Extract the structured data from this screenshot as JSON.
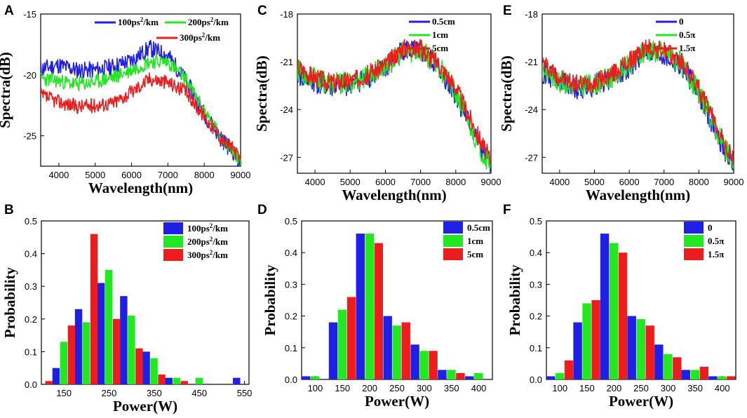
{
  "figure": {
    "panels": [
      "A",
      "B",
      "C",
      "D",
      "E",
      "F"
    ]
  },
  "colors": {
    "blue": "#1f1fe6",
    "green": "#22e822",
    "red": "#ee1d1d"
  },
  "chart_data": [
    {
      "id": "A",
      "type": "line",
      "xlabel": "Wavelength(nm)",
      "ylabel": "Spectra(dB)",
      "xlim": [
        3500,
        9000
      ],
      "ylim": [
        -27.5,
        -15
      ],
      "xticks": [
        4000,
        5000,
        6000,
        7000,
        8000,
        9000
      ],
      "yticks": [
        -25,
        -20,
        -15
      ],
      "legend": "top-right",
      "series": [
        {
          "name": "100ps",
          "sup": "2",
          "unit": "/km",
          "color": "#1f1fe6",
          "seed": 11,
          "noise": 0.7,
          "x": [
            3500,
            4000,
            4500,
            5000,
            5500,
            6000,
            6500,
            7000,
            7500,
            8000,
            8500,
            8800,
            9000
          ],
          "y": [
            -19.5,
            -19.2,
            -19.6,
            -19.6,
            -19.3,
            -18.8,
            -17.8,
            -18.4,
            -20.5,
            -23.2,
            -25.4,
            -26.3,
            -27.3
          ]
        },
        {
          "name": "200ps",
          "sup": "2",
          "unit": "/km",
          "color": "#22e822",
          "seed": 23,
          "noise": 0.6,
          "x": [
            3500,
            4000,
            4500,
            5000,
            5500,
            6000,
            6500,
            7000,
            7500,
            8000,
            8500,
            8800,
            9000
          ],
          "y": [
            -20.3,
            -20.5,
            -20.8,
            -20.6,
            -20.2,
            -19.6,
            -18.9,
            -18.9,
            -20.4,
            -23.0,
            -25.3,
            -26.3,
            -27.0
          ]
        },
        {
          "name": "300ps",
          "sup": "2",
          "unit": "/km",
          "color": "#ee1d1d",
          "seed": 37,
          "noise": 0.6,
          "x": [
            3500,
            4000,
            4500,
            5000,
            5500,
            6000,
            6500,
            7000,
            7500,
            8000,
            8500,
            8800,
            9000
          ],
          "y": [
            -21.7,
            -22.2,
            -22.6,
            -22.5,
            -22.3,
            -21.4,
            -20.3,
            -20.6,
            -21.4,
            -23.4,
            -25.3,
            -26.1,
            -27.1
          ]
        }
      ]
    },
    {
      "id": "C",
      "type": "line",
      "xlabel": "Wavelength(nm)",
      "ylabel": "Spectra(dB)",
      "xlim": [
        3500,
        9000
      ],
      "ylim": [
        -28,
        -18
      ],
      "xticks": [
        4000,
        5000,
        6000,
        7000,
        8000,
        9000
      ],
      "yticks": [
        -27,
        -24,
        -21,
        -18
      ],
      "legend": "top-right",
      "series": [
        {
          "name": "0.5cm",
          "color": "#1f1fe6",
          "seed": 41,
          "noise": 0.7,
          "x": [
            3500,
            4000,
            4500,
            5000,
            5500,
            6000,
            6500,
            7000,
            7500,
            8000,
            8500,
            8800,
            9000
          ],
          "y": [
            -21.8,
            -22.3,
            -22.6,
            -22.4,
            -22.0,
            -21.4,
            -20.2,
            -20.4,
            -21.3,
            -23.1,
            -25.4,
            -26.8,
            -27.5
          ]
        },
        {
          "name": "1cm",
          "color": "#22e822",
          "seed": 53,
          "noise": 0.7,
          "x": [
            3500,
            4000,
            4500,
            5000,
            5500,
            6000,
            6500,
            7000,
            7500,
            8000,
            8500,
            8800,
            9000
          ],
          "y": [
            -21.5,
            -22.1,
            -22.4,
            -22.3,
            -21.9,
            -21.3,
            -20.4,
            -20.3,
            -21.2,
            -23.0,
            -25.5,
            -26.9,
            -27.3
          ]
        },
        {
          "name": "5cm",
          "color": "#ee1d1d",
          "seed": 67,
          "noise": 0.6,
          "x": [
            3500,
            4000,
            4500,
            5000,
            5500,
            6000,
            6500,
            7000,
            7500,
            8000,
            8500,
            8800,
            9000
          ],
          "y": [
            -21.3,
            -22.0,
            -22.3,
            -22.2,
            -21.8,
            -21.2,
            -20.1,
            -20.2,
            -21.1,
            -22.6,
            -25.0,
            -26.4,
            -27.2
          ]
        }
      ]
    },
    {
      "id": "E",
      "type": "line",
      "xlabel": "Wavelength(nm)",
      "ylabel": "Spectra(dB)",
      "xlim": [
        3500,
        9000
      ],
      "ylim": [
        -28,
        -18
      ],
      "xticks": [
        4000,
        5000,
        6000,
        7000,
        8000,
        9000
      ],
      "yticks": [
        -27,
        -24,
        -21,
        -18
      ],
      "legend": "top-right",
      "series": [
        {
          "name": "0",
          "color": "#1f1fe6",
          "seed": 71,
          "noise": 0.7,
          "x": [
            3500,
            4000,
            4500,
            5000,
            5500,
            6000,
            6500,
            7000,
            7500,
            8000,
            8500,
            8800,
            9000
          ],
          "y": [
            -21.6,
            -22.3,
            -22.8,
            -22.5,
            -22.0,
            -21.3,
            -20.2,
            -20.5,
            -21.2,
            -23.0,
            -25.4,
            -26.8,
            -27.4
          ]
        },
        {
          "name": "0.5π",
          "color": "#22e822",
          "seed": 83,
          "noise": 0.7,
          "x": [
            3500,
            4000,
            4500,
            5000,
            5500,
            6000,
            6500,
            7000,
            7500,
            8000,
            8500,
            8800,
            9000
          ],
          "y": [
            -21.4,
            -22.2,
            -22.6,
            -22.4,
            -21.9,
            -21.2,
            -20.3,
            -20.4,
            -21.1,
            -22.9,
            -25.3,
            -26.6,
            -27.3
          ]
        },
        {
          "name": "1.5π",
          "color": "#ee1d1d",
          "seed": 97,
          "noise": 0.6,
          "x": [
            3500,
            4000,
            4500,
            5000,
            5500,
            6000,
            6500,
            7000,
            7500,
            8000,
            8500,
            8800,
            9000
          ],
          "y": [
            -21.0,
            -22.0,
            -22.4,
            -22.3,
            -21.8,
            -21.0,
            -20.1,
            -20.3,
            -21.0,
            -22.7,
            -25.0,
            -26.5,
            -27.2
          ]
        }
      ]
    },
    {
      "id": "B",
      "type": "bar",
      "xlabel": "Power(W)",
      "ylabel": "Probability",
      "xlim": [
        100,
        560
      ],
      "ylim": [
        0,
        0.5
      ],
      "xticks": [
        150,
        250,
        350,
        450,
        550
      ],
      "yticks": [
        0.0,
        0.1,
        0.2,
        0.3,
        0.4,
        0.5
      ],
      "ytick_decimals": 1,
      "bar_group_width": 33,
      "legend": "top-right",
      "series": [
        {
          "name": "100ps",
          "sup": "2",
          "unit": "/km",
          "color": "#1f1fe6",
          "x": [
            150,
            200,
            250,
            300,
            350,
            400,
            450,
            550
          ],
          "y": [
            0.05,
            0.23,
            0.31,
            0.27,
            0.1,
            0.02,
            0.0,
            0.02
          ]
        },
        {
          "name": "200ps",
          "sup": "2",
          "unit": "/km",
          "color": "#22e822",
          "x": [
            150,
            200,
            250,
            300,
            350,
            400,
            450
          ],
          "y": [
            0.13,
            0.19,
            0.35,
            0.21,
            0.08,
            0.02,
            0.02
          ]
        },
        {
          "name": "300ps",
          "sup": "2",
          "unit": "/km",
          "color": "#ee1d1d",
          "x": [
            100,
            150,
            200,
            250,
            300,
            350,
            400
          ],
          "y": [
            0.01,
            0.18,
            0.46,
            0.2,
            0.11,
            0.03,
            0.01
          ]
        }
      ]
    },
    {
      "id": "D",
      "type": "bar",
      "xlabel": "Power(W)",
      "ylabel": "Probability",
      "xlim": [
        75,
        425
      ],
      "ylim": [
        0,
        0.5
      ],
      "xticks": [
        100,
        150,
        200,
        250,
        300,
        350,
        400
      ],
      "yticks": [
        0.0,
        0.1,
        0.2,
        0.3,
        0.4,
        0.5
      ],
      "ytick_decimals": 1,
      "bar_group_width": 39,
      "legend": "top-right",
      "series": [
        {
          "name": "0.5cm",
          "color": "#1f1fe6",
          "x": [
            100,
            150,
            200,
            250,
            300,
            350,
            400
          ],
          "y": [
            0.01,
            0.18,
            0.46,
            0.2,
            0.11,
            0.03,
            0.01
          ]
        },
        {
          "name": "1cm",
          "color": "#22e822",
          "x": [
            100,
            150,
            200,
            250,
            300,
            350,
            400
          ],
          "y": [
            0.01,
            0.22,
            0.46,
            0.17,
            0.09,
            0.03,
            0.02
          ]
        },
        {
          "name": "5cm",
          "color": "#ee1d1d",
          "x": [
            100,
            150,
            200,
            250,
            300,
            350,
            400
          ],
          "y": [
            0.0,
            0.26,
            0.43,
            0.18,
            0.09,
            0.02,
            0.0
          ]
        }
      ]
    },
    {
      "id": "F",
      "type": "bar",
      "xlabel": "Power(W)",
      "ylabel": "Probability",
      "xlim": [
        75,
        425
      ],
      "ylim": [
        0,
        0.5
      ],
      "xticks": [
        100,
        150,
        200,
        250,
        300,
        350,
        400
      ],
      "yticks": [
        0.0,
        0.1,
        0.2,
        0.3,
        0.4,
        0.5
      ],
      "ytick_decimals": 1,
      "bar_group_width": 39,
      "legend": "top-right",
      "series": [
        {
          "name": "0",
          "color": "#1f1fe6",
          "x": [
            100,
            150,
            200,
            250,
            300,
            350,
            400
          ],
          "y": [
            0.01,
            0.18,
            0.46,
            0.2,
            0.11,
            0.03,
            0.01
          ]
        },
        {
          "name": "0.5π",
          "color": "#22e822",
          "x": [
            100,
            150,
            200,
            250,
            300,
            350,
            400
          ],
          "y": [
            0.02,
            0.24,
            0.43,
            0.19,
            0.08,
            0.03,
            0.01
          ]
        },
        {
          "name": "1.5π",
          "color": "#ee1d1d",
          "x": [
            100,
            150,
            200,
            250,
            300,
            350,
            400
          ],
          "y": [
            0.06,
            0.25,
            0.4,
            0.17,
            0.07,
            0.04,
            0.01
          ]
        }
      ]
    }
  ]
}
